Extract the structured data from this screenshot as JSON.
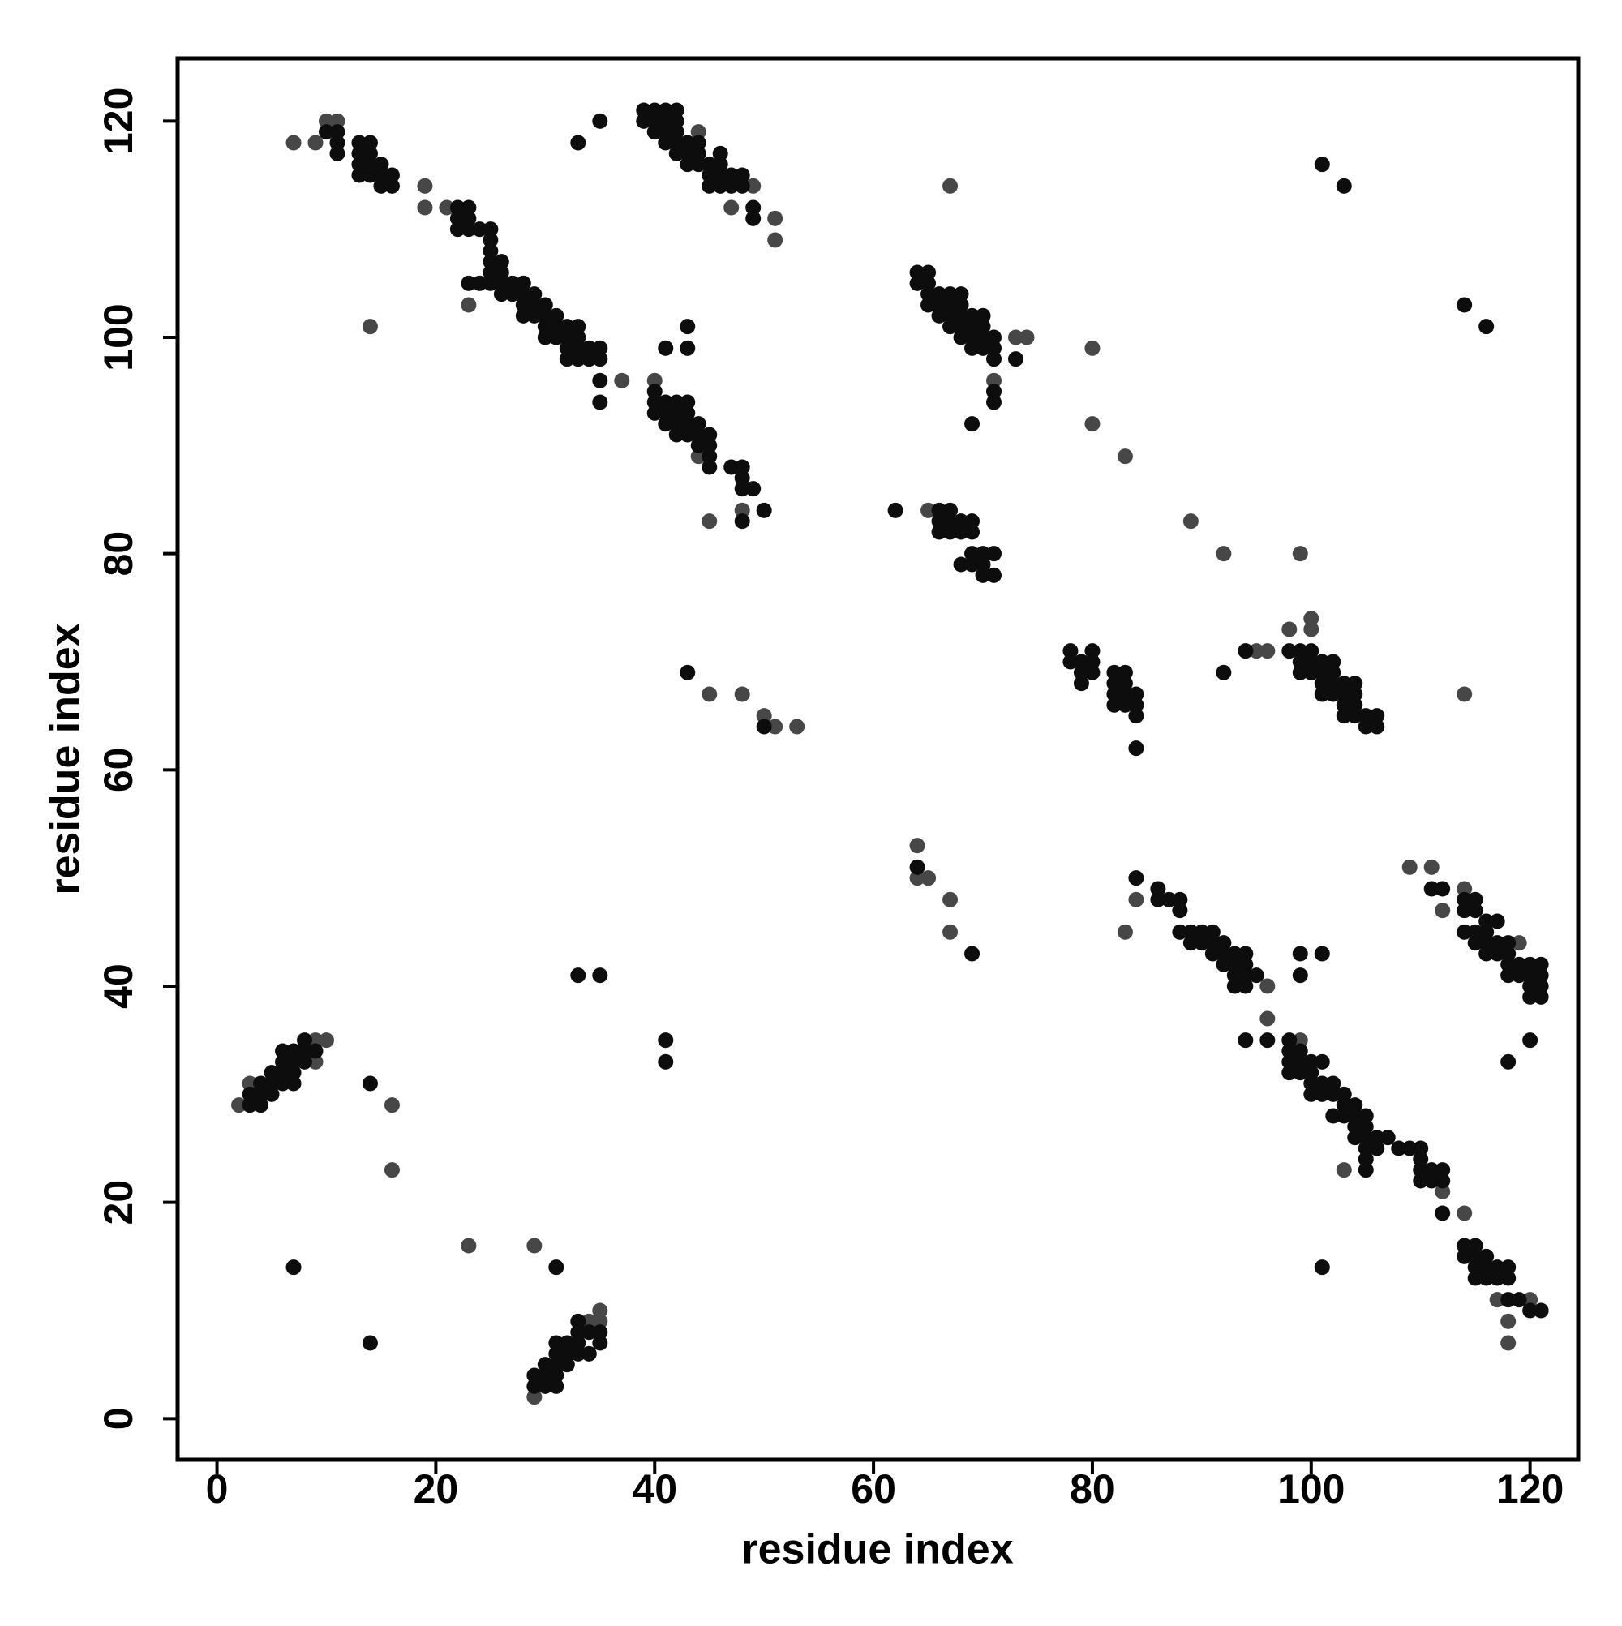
{
  "chart_data": {
    "type": "scatter",
    "x_label": "residue index",
    "y_label": "residue index",
    "xlim": [
      -3.6,
      124.4
    ],
    "ylim": [
      -3.8,
      125.8
    ],
    "xticks": [
      0,
      20,
      40,
      60,
      80,
      100,
      120
    ],
    "yticks": [
      0,
      20,
      40,
      60,
      80,
      100,
      120
    ],
    "grid": false,
    "series": [
      {
        "color": "#474747",
        "x": [
          2,
          3,
          9,
          10,
          9,
          16,
          16,
          23,
          29,
          29,
          35,
          35,
          34,
          7,
          9,
          10,
          11,
          19,
          19,
          21,
          23,
          14,
          37,
          44,
          51,
          51,
          47,
          49,
          45,
          48,
          40,
          44,
          53,
          51,
          50,
          48,
          45,
          67,
          73,
          74,
          71,
          80,
          80,
          83,
          89,
          92,
          99,
          65,
          96,
          95,
          100,
          100,
          98,
          114,
          64,
          64,
          65,
          67,
          67,
          83,
          84,
          109,
          111,
          112,
          114,
          96,
          96,
          103,
          99,
          112,
          114,
          120,
          117,
          118,
          118,
          119
        ],
        "values": [
          29,
          31,
          35,
          35,
          33,
          29,
          23,
          16,
          16,
          2,
          10,
          9,
          9,
          118,
          118,
          120,
          120,
          114,
          112,
          112,
          103,
          101,
          96,
          119,
          111,
          109,
          112,
          114,
          83,
          84,
          96,
          89,
          64,
          64,
          65,
          67,
          67,
          114,
          100,
          100,
          96,
          99,
          92,
          89,
          83,
          80,
          80,
          84,
          71,
          71,
          74,
          73,
          73,
          67,
          53,
          50,
          50,
          48,
          45,
          45,
          48,
          51,
          51,
          47,
          49,
          37,
          40,
          23,
          35,
          21,
          19,
          11,
          11,
          9,
          7,
          44
        ]
      },
      {
        "color": "#0d0d0d",
        "x": [
          3,
          4,
          4,
          5,
          3,
          4,
          5,
          6,
          7,
          5,
          6,
          7,
          6,
          7,
          8,
          6,
          7,
          8,
          8,
          9,
          14,
          7,
          14,
          31,
          29,
          30,
          31,
          29,
          30,
          31,
          30,
          31,
          32,
          31,
          32,
          33,
          34,
          31,
          32,
          33,
          35,
          33,
          34,
          35,
          33,
          33,
          35,
          41,
          41,
          10,
          11,
          11,
          11,
          13,
          14,
          13,
          14,
          13,
          14,
          15,
          13,
          14,
          15,
          16,
          15,
          16,
          22,
          23,
          22,
          23,
          22,
          23,
          24,
          25,
          25,
          25,
          25,
          26,
          25,
          26,
          25,
          26,
          27,
          23,
          24,
          26,
          27,
          28,
          28,
          28,
          29,
          29,
          30,
          28,
          29,
          30,
          31,
          30,
          31,
          32,
          30,
          31,
          32,
          33,
          33,
          32,
          33,
          34,
          32,
          33,
          34,
          35,
          35,
          35,
          35,
          33,
          35,
          39,
          40,
          41,
          42,
          39,
          40,
          41,
          42,
          40,
          41,
          42,
          41,
          42,
          43,
          44,
          42,
          43,
          44,
          43,
          44,
          45,
          46,
          45,
          46,
          47,
          46,
          45,
          46,
          47,
          48,
          48,
          49,
          49,
          43,
          43,
          41,
          40,
          40,
          41,
          42,
          43,
          40,
          41,
          42,
          43,
          41,
          42,
          43,
          44,
          42,
          43,
          44,
          45,
          44,
          45,
          45,
          45,
          47,
          48,
          48,
          48,
          49,
          48,
          50,
          43,
          50,
          64,
          65,
          64,
          65,
          65,
          66,
          67,
          68,
          65,
          66,
          67,
          68,
          66,
          67,
          68,
          69,
          70,
          67,
          68,
          69,
          70,
          68,
          69,
          70,
          71,
          69,
          70,
          71,
          71,
          73,
          71,
          71,
          69,
          62,
          66,
          67,
          66,
          67,
          68,
          69,
          66,
          67,
          68,
          69,
          70,
          71,
          69,
          70,
          68,
          69,
          70,
          71,
          78,
          80,
          78,
          79,
          80,
          79,
          80,
          79,
          82,
          83,
          82,
          83,
          82,
          83,
          84,
          82,
          83,
          84,
          84,
          84,
          92,
          94,
          98,
          99,
          100,
          99,
          100,
          101,
          99,
          100,
          101,
          102,
          102,
          101,
          102,
          103,
          104,
          101,
          102,
          103,
          104,
          103,
          104,
          103,
          104,
          105,
          106,
          105,
          106,
          101,
          103,
          114,
          116,
          64,
          69,
          84,
          86,
          86,
          87,
          88,
          88,
          88,
          89,
          90,
          89,
          90,
          91,
          91,
          91,
          92,
          92,
          93,
          92,
          93,
          94,
          94,
          93,
          94,
          95,
          93,
          94,
          99,
          99,
          101,
          111,
          112,
          114,
          115,
          114,
          115,
          116,
          117,
          114,
          115,
          116,
          115,
          116,
          117,
          118,
          116,
          117,
          118,
          118,
          119,
          120,
          121,
          118,
          119,
          120,
          121,
          120,
          121,
          120,
          121,
          120,
          118,
          94,
          96,
          98,
          98,
          99,
          98,
          99,
          100,
          101,
          98,
          99,
          100,
          100,
          101,
          102,
          100,
          101,
          102,
          103,
          103,
          104,
          102,
          103,
          104,
          105,
          104,
          105,
          104,
          105,
          106,
          107,
          105,
          106,
          108,
          109,
          110,
          105,
          105,
          110,
          110,
          111,
          112,
          110,
          111,
          112,
          112,
          114,
          115,
          114,
          115,
          116,
          115,
          116,
          117,
          118,
          115,
          116,
          117,
          118,
          118,
          119,
          120,
          121,
          101
        ],
        "values": [
          29,
          29,
          30,
          30,
          30,
          31,
          31,
          31,
          31,
          32,
          32,
          32,
          33,
          33,
          33,
          34,
          34,
          34,
          35,
          34,
          31,
          14,
          7,
          14,
          3,
          3,
          3,
          4,
          4,
          4,
          5,
          5,
          5,
          6,
          6,
          6,
          6,
          7,
          7,
          7,
          7,
          8,
          8,
          8,
          9,
          41,
          41,
          35,
          33,
          119,
          119,
          118,
          117,
          118,
          118,
          117,
          117,
          116,
          116,
          116,
          115,
          115,
          115,
          115,
          114,
          114,
          112,
          112,
          111,
          111,
          110,
          110,
          110,
          110,
          109,
          108,
          107,
          107,
          106,
          106,
          105,
          105,
          105,
          105,
          105,
          104,
          104,
          104,
          105,
          103,
          104,
          103,
          103,
          102,
          102,
          102,
          102,
          101,
          101,
          101,
          100,
          100,
          100,
          100,
          101,
          99,
          99,
          99,
          98,
          98,
          98,
          98,
          99,
          96,
          94,
          118,
          120,
          121,
          121,
          121,
          121,
          120,
          120,
          120,
          120,
          119,
          119,
          119,
          118,
          118,
          118,
          118,
          117,
          117,
          117,
          116,
          116,
          116,
          117,
          115,
          115,
          115,
          116,
          114,
          114,
          114,
          115,
          114,
          112,
          111,
          101,
          99,
          99,
          95,
          94,
          94,
          94,
          94,
          93,
          93,
          93,
          93,
          92,
          92,
          92,
          92,
          91,
          91,
          91,
          91,
          90,
          90,
          89,
          88,
          88,
          88,
          87,
          86,
          86,
          83,
          84,
          69,
          64,
          106,
          106,
          105,
          105,
          104,
          104,
          104,
          104,
          103,
          103,
          103,
          103,
          102,
          102,
          102,
          102,
          102,
          101,
          101,
          101,
          101,
          100,
          100,
          100,
          100,
          99,
          99,
          99,
          98,
          98,
          95,
          94,
          92,
          84,
          84,
          84,
          83,
          83,
          83,
          83,
          82,
          82,
          82,
          82,
          80,
          80,
          80,
          79,
          79,
          79,
          78,
          78,
          71,
          71,
          70,
          70,
          70,
          69,
          69,
          68,
          69,
          69,
          68,
          68,
          67,
          67,
          67,
          66,
          66,
          66,
          65,
          62,
          69,
          71,
          71,
          71,
          71,
          70,
          70,
          70,
          69,
          69,
          69,
          70,
          69,
          68,
          68,
          68,
          68,
          67,
          67,
          67,
          67,
          66,
          66,
          65,
          65,
          65,
          65,
          64,
          64,
          116,
          114,
          103,
          101,
          51,
          43,
          50,
          49,
          48,
          48,
          48,
          47,
          45,
          45,
          45,
          44,
          44,
          45,
          44,
          43,
          44,
          43,
          43,
          42,
          42,
          42,
          43,
          41,
          41,
          41,
          40,
          40,
          43,
          41,
          43,
          49,
          49,
          48,
          48,
          47,
          47,
          46,
          46,
          45,
          45,
          45,
          44,
          44,
          44,
          44,
          43,
          43,
          43,
          42,
          42,
          42,
          42,
          41,
          41,
          41,
          41,
          40,
          40,
          39,
          39,
          35,
          33,
          35,
          35,
          35,
          34,
          34,
          33,
          33,
          33,
          33,
          32,
          32,
          32,
          31,
          31,
          31,
          30,
          30,
          30,
          30,
          29,
          29,
          28,
          28,
          28,
          28,
          27,
          27,
          26,
          26,
          26,
          26,
          25,
          25,
          25,
          25,
          25,
          24,
          23,
          24,
          23,
          23,
          23,
          22,
          22,
          22,
          19,
          16,
          16,
          15,
          15,
          15,
          14,
          14,
          14,
          14,
          13,
          13,
          13,
          13,
          11,
          11,
          10,
          10,
          14
        ]
      }
    ]
  }
}
